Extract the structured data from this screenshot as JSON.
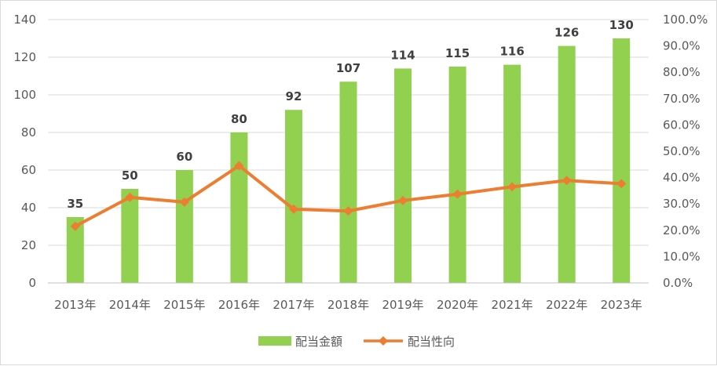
{
  "chart_data": {
    "type": "bar",
    "categories": [
      "2013年",
      "2014年",
      "2015年",
      "2016年",
      "2017年",
      "2018年",
      "2019年",
      "2020年",
      "2021年",
      "2022年",
      "2023年"
    ],
    "series": [
      {
        "name": "配当金額",
        "type": "bar",
        "axis": "left",
        "color": "#92d050",
        "values": [
          35,
          50,
          60,
          80,
          92,
          107,
          114,
          115,
          116,
          126,
          130
        ],
        "data_labels": [
          "35",
          "50",
          "60",
          "80",
          "92",
          "107",
          "114",
          "115",
          "116",
          "126",
          "130"
        ]
      },
      {
        "name": "配当性向",
        "type": "line",
        "axis": "right",
        "color": "#ed7d31",
        "marker": "diamond",
        "values": [
          21.5,
          32.5,
          30.7,
          44.5,
          28.0,
          27.3,
          31.3,
          33.7,
          36.5,
          38.9,
          37.7
        ]
      }
    ],
    "y_left": {
      "min": 0,
      "max": 140,
      "ticks": [
        "0",
        "20",
        "40",
        "60",
        "80",
        "100",
        "120",
        "140"
      ]
    },
    "y_right": {
      "min": 0,
      "max": 100,
      "ticks": [
        "0.0%",
        "10.0%",
        "20.0%",
        "30.0%",
        "40.0%",
        "50.0%",
        "60.0%",
        "70.0%",
        "80.0%",
        "90.0%",
        "100.0%"
      ]
    },
    "grid": true,
    "legend": "bottom",
    "title": "",
    "xlabel": "",
    "ylabel": ""
  }
}
